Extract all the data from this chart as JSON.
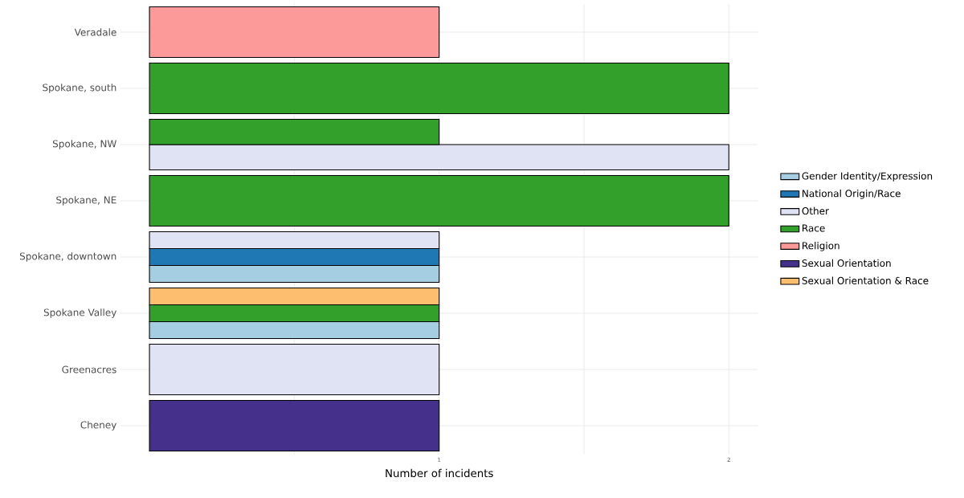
{
  "chart_data": {
    "type": "bar",
    "orientation": "horizontal",
    "xlabel": "Number of incidents",
    "categories": [
      "Veradale",
      "Spokane, south",
      "Spokane, NW",
      "Spokane, NE",
      "Spokane, downtown",
      "Spokane Valley",
      "Greenacres",
      "Cheney"
    ],
    "series": [
      {
        "name": "Gender Identity/Expression",
        "color": "#a6cee3",
        "values": [
          null,
          null,
          null,
          null,
          1,
          1,
          null,
          null
        ]
      },
      {
        "name": "National Origin/Race",
        "color": "#1f78b4",
        "values": [
          null,
          null,
          null,
          null,
          1,
          null,
          null,
          null
        ]
      },
      {
        "name": "Other",
        "color": "#e0e3f3",
        "values": [
          null,
          null,
          2,
          null,
          1,
          null,
          1,
          null
        ]
      },
      {
        "name": "Race",
        "color": "#33a02c",
        "values": [
          null,
          2,
          1,
          2,
          null,
          1,
          null,
          null
        ]
      },
      {
        "name": "Religion",
        "color": "#fb9a99",
        "values": [
          1,
          null,
          null,
          null,
          null,
          null,
          null,
          null
        ]
      },
      {
        "name": "Sexual Orientation",
        "color": "#45318b",
        "values": [
          null,
          null,
          null,
          null,
          null,
          null,
          null,
          1
        ]
      },
      {
        "name": "Sexual Orientation & Race",
        "color": "#fdbf6f",
        "values": [
          null,
          null,
          null,
          null,
          null,
          1,
          null,
          null
        ]
      }
    ],
    "xlim": [
      -0.1,
      2.1
    ],
    "xticks": [
      {
        "value": 0,
        "label": null
      },
      {
        "value": 0.5,
        "label": null
      },
      1,
      {
        "value": 1.5,
        "label": null
      },
      2
    ],
    "grid": true,
    "legend": "right"
  }
}
